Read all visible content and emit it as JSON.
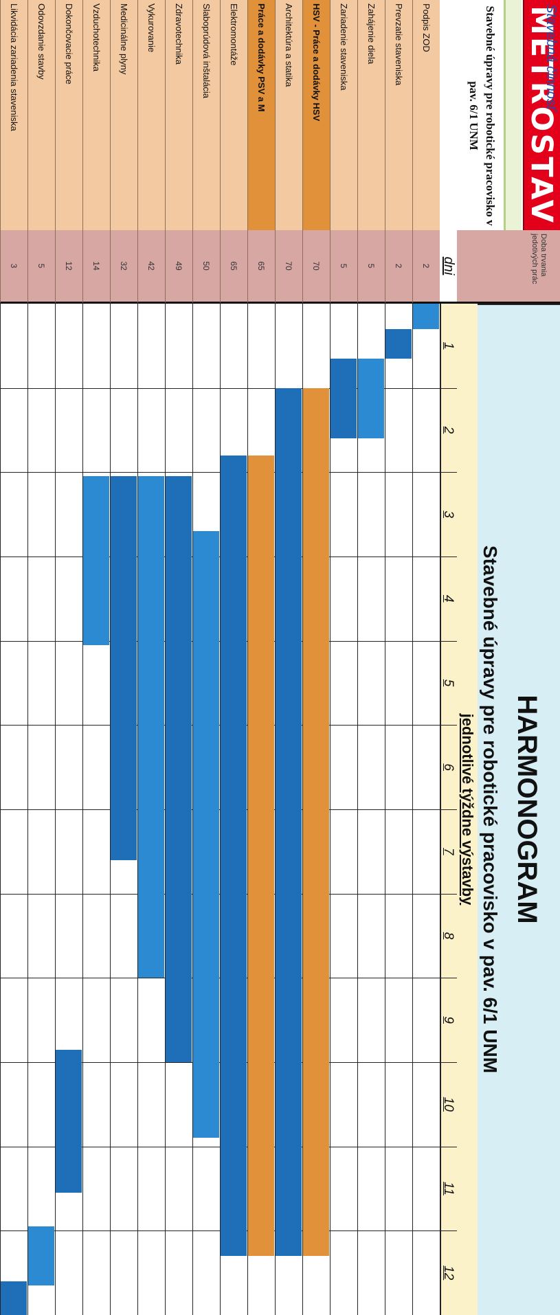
{
  "header": {
    "logo_text": "METROSTAV",
    "logo_subtitle": "Stavebná činnosť",
    "project_title": "Stavebné úpravy pre robotické pracovisko v pav. 6/1 UNM",
    "duration_label": "Doba trvania jedotivých prác",
    "duration_unit": "dni",
    "main_title": "HARMONOGRAM",
    "sub_title": "Stavebné úpravy pre robotické pracovisko v pav. 6/1 UNM",
    "week_caption": "jednotlivé týždne výstavby"
  },
  "colors": {
    "activity_bg": "#f2c9a0",
    "activity_highlight": "#e0913a",
    "duration_bg": "#d7a7a4",
    "bar_blue": "#2b8ad2",
    "bar_blue_dark": "#1f6fb8",
    "bar_orange": "#e0913a",
    "title_bg": "#d6eef4",
    "week_bg": "#fbf2c9",
    "logo_red": "#e3001b"
  },
  "chart_data": {
    "type": "gantt",
    "title": "HARMONOGRAM",
    "subtitle": "Stavebné úpravy pre robotické pracovisko v pav. 6/1 UNM",
    "xlabel": "jednotlivé týždne výstavby",
    "duration_header": "Doba trvania jedotivých prác",
    "duration_unit": "dni",
    "weeks": [
      "1",
      "2",
      "3",
      "4",
      "5",
      "6",
      "7",
      "8",
      "9",
      "10",
      "11",
      "12"
    ],
    "tasks": [
      {
        "name": "Podpis ZOD",
        "days": 2,
        "start_week": 0.0,
        "end_week": 0.3,
        "highlight": false,
        "color": "blue"
      },
      {
        "name": "Prevzatie staveniska",
        "days": 2,
        "start_week": 0.3,
        "end_week": 0.65,
        "highlight": false,
        "color": "blue"
      },
      {
        "name": "Zahájenie diela",
        "days": 5,
        "start_week": 0.65,
        "end_week": 1.6,
        "highlight": false,
        "color": "blue"
      },
      {
        "name": "Zariadenie staveniska",
        "days": 5,
        "start_week": 0.65,
        "end_week": 1.6,
        "highlight": false,
        "color": "blue"
      },
      {
        "name": "HSV - Práce a dodávky HSV",
        "days": 70,
        "start_week": 1.0,
        "end_week": 11.3,
        "highlight": true,
        "color": "orange"
      },
      {
        "name": "Architektúra a statika",
        "days": 70,
        "start_week": 1.0,
        "end_week": 11.3,
        "highlight": false,
        "color": "blue"
      },
      {
        "name": "Práce a dodávky PSV a M",
        "days": 65,
        "start_week": 1.8,
        "end_week": 11.3,
        "highlight": true,
        "color": "orange"
      },
      {
        "name": "Elektromontáže",
        "days": 65,
        "start_week": 1.8,
        "end_week": 11.3,
        "highlight": false,
        "color": "blue"
      },
      {
        "name": "Slaboprúdová inštalácia",
        "days": 50,
        "start_week": 2.7,
        "end_week": 9.9,
        "highlight": false,
        "color": "blue"
      },
      {
        "name": "Zdravotechnika",
        "days": 49,
        "start_week": 2.05,
        "end_week": 9.0,
        "highlight": false,
        "color": "blue"
      },
      {
        "name": "Vykurovanie",
        "days": 42,
        "start_week": 2.05,
        "end_week": 8.0,
        "highlight": false,
        "color": "blue"
      },
      {
        "name": "Medicinálne plyny",
        "days": 32,
        "start_week": 2.05,
        "end_week": 6.6,
        "highlight": false,
        "color": "blue"
      },
      {
        "name": "Vzduchotechnika",
        "days": 14,
        "start_week": 2.05,
        "end_week": 4.05,
        "highlight": false,
        "color": "blue"
      },
      {
        "name": "Dokončovacie práce",
        "days": 12,
        "start_week": 8.85,
        "end_week": 10.55,
        "highlight": false,
        "color": "blue"
      },
      {
        "name": "Odovzdanie stavby",
        "days": 5,
        "start_week": 10.95,
        "end_week": 11.65,
        "highlight": false,
        "color": "blue"
      },
      {
        "name": "Likvidácia zariadenia staveniska",
        "days": 3,
        "start_week": 11.6,
        "end_week": 12.0,
        "highlight": false,
        "color": "blue"
      }
    ]
  }
}
